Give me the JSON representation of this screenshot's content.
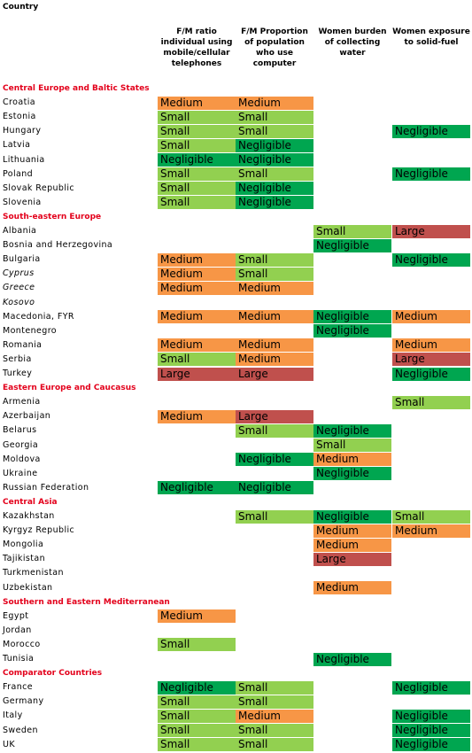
{
  "header": {
    "title": "Country"
  },
  "table": {
    "columns": [
      "F/M ratio individual using mobile/cellular telephones",
      "F/M Proportion of population who use computer",
      "Women burden of collecting water",
      "Women exposure to solid-fuel"
    ],
    "colors": {
      "Negligible": "#00a650",
      "Small": "#92d050",
      "Medium": "#f79646",
      "Large": "#c0504d"
    },
    "rows": [
      {
        "section": "Central Europe and Baltic States"
      },
      {
        "country": "Croatia",
        "cells": [
          "Medium",
          "Medium",
          null,
          null
        ]
      },
      {
        "country": "Estonia",
        "cells": [
          "Small",
          "Small",
          null,
          null
        ]
      },
      {
        "country": "Hungary",
        "cells": [
          "Small",
          "Small",
          null,
          "Negligible"
        ]
      },
      {
        "country": "Latvia",
        "cells": [
          "Small",
          "Negligible",
          null,
          null
        ]
      },
      {
        "country": "Lithuania",
        "cells": [
          "Negligible",
          "Negligible",
          null,
          null
        ]
      },
      {
        "country": "Poland",
        "cells": [
          "Small",
          "Small",
          null,
          "Negligible"
        ]
      },
      {
        "country": "Slovak Republic",
        "cells": [
          "Small",
          "Negligible",
          null,
          null
        ]
      },
      {
        "country": "Slovenia",
        "cells": [
          "Small",
          "Negligible",
          null,
          null
        ]
      },
      {
        "section": "South-eastern Europe"
      },
      {
        "country": "Albania",
        "cells": [
          null,
          null,
          "Small",
          "Large"
        ]
      },
      {
        "country": "Bosnia and Herzegovina",
        "cells": [
          null,
          null,
          "Negligible",
          null
        ]
      },
      {
        "country": "Bulgaria",
        "cells": [
          "Medium",
          "Small",
          null,
          "Negligible"
        ]
      },
      {
        "country": "Cyprus",
        "italic": true,
        "cells": [
          "Medium",
          "Small",
          null,
          null
        ]
      },
      {
        "country": "Greece",
        "italic": true,
        "cells": [
          "Medium",
          "Medium",
          null,
          null
        ]
      },
      {
        "country": "Kosovo",
        "italic": true,
        "cells": [
          null,
          null,
          null,
          null
        ]
      },
      {
        "country": "Macedonia, FYR",
        "cells": [
          "Medium",
          "Medium",
          "Negligible",
          "Medium"
        ]
      },
      {
        "country": "Montenegro",
        "cells": [
          null,
          null,
          "Negligible",
          null
        ]
      },
      {
        "country": "Romania",
        "cells": [
          "Medium",
          "Medium",
          null,
          "Medium"
        ]
      },
      {
        "country": "Serbia",
        "cells": [
          "Small",
          "Medium",
          null,
          "Large"
        ]
      },
      {
        "country": "Turkey",
        "cells": [
          "Large",
          "Large",
          null,
          "Negligible"
        ]
      },
      {
        "section": "Eastern Europe and Caucasus"
      },
      {
        "country": "Armenia",
        "cells": [
          null,
          null,
          null,
          "Small"
        ]
      },
      {
        "country": "Azerbaijan",
        "cells": [
          "Medium",
          "Large",
          null,
          null
        ]
      },
      {
        "country": "Belarus",
        "cells": [
          null,
          "Small",
          "Negligible",
          null
        ]
      },
      {
        "country": "Georgia",
        "cells": [
          null,
          null,
          "Small",
          null
        ]
      },
      {
        "country": "Moldova",
        "cells": [
          null,
          "Negligible",
          "Medium",
          null
        ]
      },
      {
        "country": "Ukraine",
        "cells": [
          null,
          null,
          "Negligible",
          null
        ]
      },
      {
        "country": "Russian Federation",
        "cells": [
          "Negligible",
          "Negligible",
          null,
          null
        ]
      },
      {
        "section": "Central Asia"
      },
      {
        "country": "Kazakhstan",
        "cells": [
          null,
          "Small",
          "Negligible",
          "Small"
        ]
      },
      {
        "country": "Kyrgyz Republic",
        "cells": [
          null,
          null,
          "Medium",
          "Medium"
        ]
      },
      {
        "country": "Mongolia",
        "cells": [
          null,
          null,
          "Medium",
          null
        ]
      },
      {
        "country": "Tajikistan",
        "cells": [
          null,
          null,
          "Large",
          null
        ]
      },
      {
        "country": "Turkmenistan",
        "cells": [
          null,
          null,
          null,
          null
        ]
      },
      {
        "country": "Uzbekistan",
        "cells": [
          null,
          null,
          "Medium",
          null
        ]
      },
      {
        "section": "Southern and Eastern Mediterranean"
      },
      {
        "country": "Egypt",
        "cells": [
          "Medium",
          null,
          null,
          null
        ]
      },
      {
        "country": "Jordan",
        "cells": [
          null,
          null,
          null,
          null
        ]
      },
      {
        "country": "Morocco",
        "cells": [
          "Small",
          null,
          null,
          null
        ]
      },
      {
        "country": "Tunisia",
        "cells": [
          null,
          null,
          "Negligible",
          null
        ]
      },
      {
        "section": "Comparator Countries"
      },
      {
        "country": "France",
        "cells": [
          "Negligible",
          "Small",
          null,
          "Negligible"
        ]
      },
      {
        "country": "Germany",
        "cells": [
          "Small",
          "Small",
          null,
          null
        ]
      },
      {
        "country": "Italy",
        "cells": [
          "Small",
          "Medium",
          null,
          "Negligible"
        ]
      },
      {
        "country": "Sweden",
        "cells": [
          "Small",
          "Small",
          null,
          "Negligible"
        ]
      },
      {
        "country": "UK",
        "cells": [
          "Small",
          "Small",
          null,
          "Negligible"
        ]
      }
    ]
  }
}
